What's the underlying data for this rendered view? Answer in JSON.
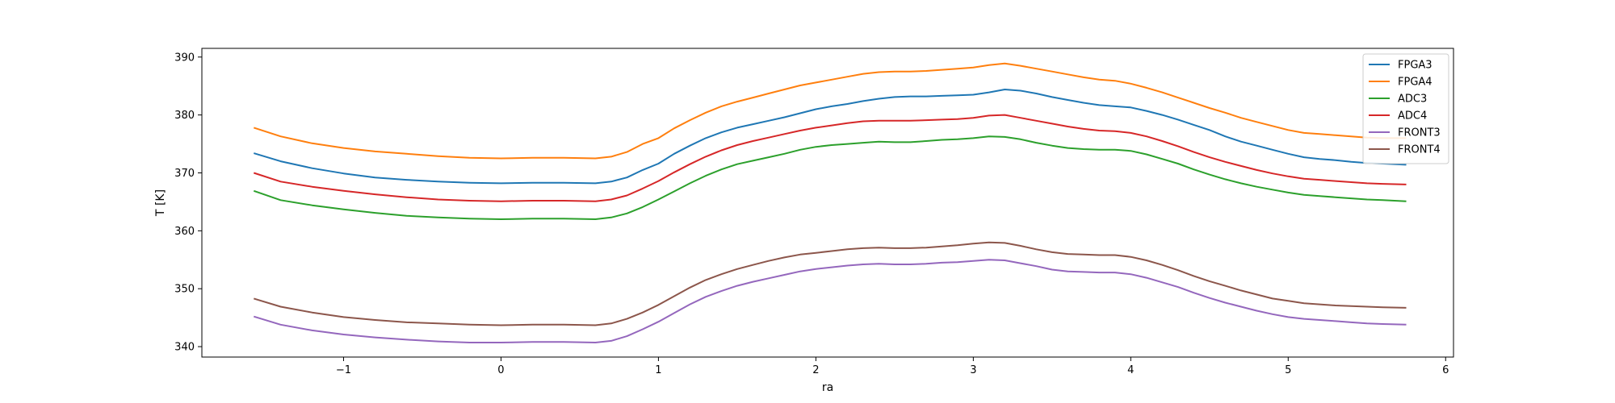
{
  "chart_data": {
    "type": "line",
    "title": "",
    "xlabel": "ra",
    "ylabel": "T [K]",
    "xlim": [
      -1.9,
      6.05
    ],
    "ylim": [
      338.2,
      391.5
    ],
    "xticks": [
      -1,
      0,
      1,
      2,
      3,
      4,
      5,
      6
    ],
    "yticks": [
      340,
      350,
      360,
      370,
      380,
      390
    ],
    "grid": false,
    "legend_position": "top-right",
    "x": [
      -1.57,
      -1.4,
      -1.2,
      -1.0,
      -0.8,
      -0.6,
      -0.4,
      -0.2,
      0.0,
      0.2,
      0.4,
      0.6,
      0.7,
      0.8,
      0.9,
      1.0,
      1.1,
      1.2,
      1.3,
      1.4,
      1.5,
      1.6,
      1.7,
      1.8,
      1.9,
      2.0,
      2.1,
      2.2,
      2.3,
      2.4,
      2.5,
      2.6,
      2.7,
      2.8,
      2.9,
      3.0,
      3.1,
      3.2,
      3.3,
      3.4,
      3.5,
      3.6,
      3.7,
      3.8,
      3.9,
      4.0,
      4.1,
      4.2,
      4.3,
      4.4,
      4.5,
      4.6,
      4.7,
      4.8,
      4.9,
      5.0,
      5.1,
      5.2,
      5.3,
      5.4,
      5.5,
      5.6,
      5.75
    ],
    "series": [
      {
        "name": "FPGA3",
        "color": "#1f77b4",
        "values": [
          373.4,
          372.0,
          370.8,
          369.9,
          369.2,
          368.8,
          368.5,
          368.3,
          368.2,
          368.3,
          368.3,
          368.2,
          368.5,
          369.2,
          370.5,
          371.6,
          373.3,
          374.7,
          376.0,
          377.0,
          377.8,
          378.4,
          379.0,
          379.6,
          380.3,
          381.0,
          381.5,
          381.9,
          382.4,
          382.8,
          383.1,
          383.2,
          383.2,
          383.3,
          383.4,
          383.5,
          383.9,
          384.4,
          384.2,
          383.7,
          383.1,
          382.6,
          382.1,
          381.7,
          381.5,
          381.3,
          380.7,
          380.0,
          379.2,
          378.3,
          377.4,
          376.3,
          375.4,
          374.7,
          374.0,
          373.3,
          372.7,
          372.4,
          372.2,
          371.9,
          371.7,
          371.6,
          371.4
        ]
      },
      {
        "name": "FPGA4",
        "color": "#ff7f0e",
        "values": [
          377.8,
          376.3,
          375.1,
          374.3,
          373.7,
          373.3,
          372.9,
          372.6,
          372.5,
          372.6,
          372.6,
          372.5,
          372.8,
          373.6,
          375.0,
          376.0,
          377.7,
          379.1,
          380.4,
          381.5,
          382.3,
          383.0,
          383.7,
          384.4,
          385.1,
          385.6,
          386.1,
          386.6,
          387.1,
          387.4,
          387.5,
          387.5,
          387.6,
          387.8,
          388.0,
          388.2,
          388.6,
          388.9,
          388.5,
          388.0,
          387.5,
          387.0,
          386.5,
          386.1,
          385.9,
          385.4,
          384.7,
          383.9,
          383.0,
          382.1,
          381.2,
          380.4,
          379.5,
          378.8,
          378.1,
          377.4,
          376.9,
          376.7,
          376.5,
          376.3,
          376.1,
          376.0,
          376.0
        ]
      },
      {
        "name": "ADC3",
        "color": "#2ca02c",
        "values": [
          366.9,
          365.3,
          364.4,
          363.7,
          363.1,
          362.6,
          362.3,
          362.1,
          362.0,
          362.1,
          362.1,
          362.0,
          362.3,
          363.0,
          364.1,
          365.4,
          366.8,
          368.2,
          369.5,
          370.6,
          371.5,
          372.1,
          372.7,
          373.3,
          374.0,
          374.5,
          374.8,
          375.0,
          375.2,
          375.4,
          375.3,
          375.3,
          375.5,
          375.7,
          375.8,
          376.0,
          376.3,
          376.2,
          375.8,
          375.2,
          374.7,
          374.3,
          374.1,
          374.0,
          374.0,
          373.8,
          373.2,
          372.4,
          371.6,
          370.6,
          369.7,
          368.9,
          368.2,
          367.6,
          367.1,
          366.6,
          366.2,
          366.0,
          365.8,
          365.6,
          365.4,
          365.3,
          365.1
        ]
      },
      {
        "name": "ADC4",
        "color": "#d62728",
        "values": [
          370.0,
          368.5,
          367.6,
          366.9,
          366.3,
          365.8,
          365.4,
          365.2,
          365.1,
          365.2,
          365.2,
          365.1,
          365.4,
          366.1,
          367.3,
          368.6,
          370.1,
          371.5,
          372.8,
          373.9,
          374.8,
          375.5,
          376.1,
          376.7,
          377.3,
          377.8,
          378.2,
          378.6,
          378.9,
          379.0,
          379.0,
          379.0,
          379.1,
          379.2,
          379.3,
          379.5,
          379.9,
          380.0,
          379.5,
          379.0,
          378.5,
          378.0,
          377.6,
          377.3,
          377.2,
          376.9,
          376.3,
          375.5,
          374.6,
          373.6,
          372.7,
          371.9,
          371.2,
          370.5,
          369.9,
          369.4,
          369.0,
          368.8,
          368.6,
          368.4,
          368.2,
          368.1,
          368.0
        ]
      },
      {
        "name": "FRONT3",
        "color": "#9467bd",
        "values": [
          345.2,
          343.8,
          342.8,
          342.1,
          341.6,
          341.2,
          340.9,
          340.7,
          340.7,
          340.8,
          340.8,
          340.7,
          341.0,
          341.8,
          343.0,
          344.3,
          345.8,
          347.3,
          348.6,
          349.6,
          350.5,
          351.2,
          351.8,
          352.4,
          353.0,
          353.4,
          353.7,
          354.0,
          354.2,
          354.3,
          354.2,
          354.2,
          354.3,
          354.5,
          354.6,
          354.8,
          355.0,
          354.9,
          354.4,
          353.9,
          353.3,
          353.0,
          352.9,
          352.8,
          352.8,
          352.5,
          351.9,
          351.1,
          350.3,
          349.3,
          348.4,
          347.6,
          346.9,
          346.2,
          345.6,
          345.1,
          344.8,
          344.6,
          344.4,
          344.2,
          344.0,
          343.9,
          343.8
        ]
      },
      {
        "name": "FRONT4",
        "color": "#8c564b",
        "values": [
          348.3,
          346.9,
          345.9,
          345.1,
          344.6,
          344.2,
          344.0,
          343.8,
          343.7,
          343.8,
          343.8,
          343.7,
          344.0,
          344.8,
          345.9,
          347.2,
          348.7,
          350.2,
          351.5,
          352.5,
          353.4,
          354.1,
          354.8,
          355.4,
          355.9,
          356.2,
          356.5,
          356.8,
          357.0,
          357.1,
          357.0,
          357.0,
          357.1,
          357.3,
          357.5,
          357.8,
          358.0,
          357.9,
          357.4,
          356.8,
          356.3,
          356.0,
          355.9,
          355.8,
          355.8,
          355.5,
          354.9,
          354.1,
          353.2,
          352.2,
          351.3,
          350.5,
          349.7,
          349.0,
          348.3,
          347.9,
          347.5,
          347.3,
          347.1,
          347.0,
          346.9,
          346.8,
          346.7
        ]
      }
    ]
  }
}
